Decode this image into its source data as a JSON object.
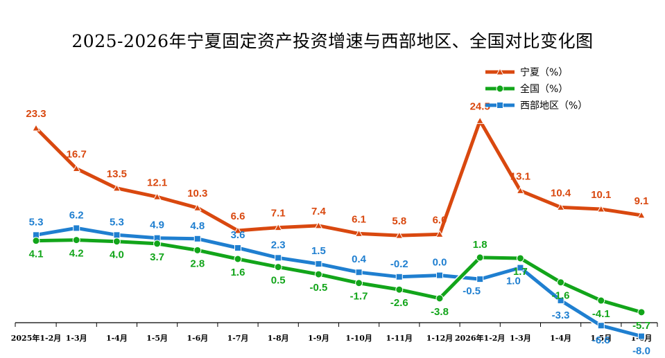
{
  "chart_data": {
    "type": "line",
    "title": "2025-2026年宁夏固定资产投资增速与西部地区、全国对比变化图",
    "categories": [
      "2025年1-2月",
      "1-3月",
      "1-4月",
      "1-5月",
      "1-6月",
      "1-7月",
      "1-8月",
      "1-9月",
      "1-10月",
      "1-11月",
      "1-12月",
      "2026年1-2月",
      "1-3月",
      "1-4月",
      "1-5月",
      "1-6月"
    ],
    "series": [
      {
        "name": "宁夏（%）",
        "color": "#d9480f",
        "marker": "triangle",
        "values": [
          23.3,
          16.7,
          13.5,
          12.1,
          10.3,
          6.6,
          7.1,
          7.4,
          6.1,
          5.8,
          6.0,
          24.5,
          13.1,
          10.4,
          10.1,
          9.1
        ],
        "labels": [
          "23.3",
          "16.7",
          "13.5",
          "12.1",
          "10.3",
          "6.6",
          "7.1",
          "7.4",
          "6.1",
          "5.8",
          "6.0",
          "24.5",
          "13.1",
          "10.4",
          "10.1",
          "9.1"
        ]
      },
      {
        "name": "全国（%）",
        "color": "#12a51a",
        "marker": "circle",
        "values": [
          4.1,
          4.2,
          4.0,
          3.7,
          2.8,
          1.6,
          0.5,
          -0.5,
          -1.7,
          -2.6,
          -3.8,
          1.8,
          1.7,
          -1.6,
          -4.1,
          -5.7
        ],
        "labels": [
          "4.1",
          "4.2",
          "4.0",
          "3.7",
          "2.8",
          "1.6",
          "0.5",
          "-0.5",
          "-1.7",
          "-2.6",
          "-3.8",
          "1.8",
          "1.7",
          "-1.6",
          "-4.1",
          "-5.7"
        ]
      },
      {
        "name": "西部地区（%）",
        "color": "#1f7fd0",
        "marker": "square",
        "values": [
          5.3,
          6.2,
          5.3,
          4.9,
          4.8,
          3.6,
          2.3,
          1.5,
          0.4,
          -0.2,
          0.0,
          -0.5,
          1.0,
          -3.3,
          -6.6,
          -8.0
        ],
        "labels": [
          "5.3",
          "6.2",
          "5.3",
          "4.9",
          "4.8",
          "3.6",
          "2.3",
          "1.5",
          "0.4",
          "-0.2",
          "0.0",
          "-0.5",
          "1.0",
          "-3.3",
          "-6.6",
          "-8.0"
        ]
      }
    ],
    "grid": false,
    "legend_position": "top-right"
  }
}
